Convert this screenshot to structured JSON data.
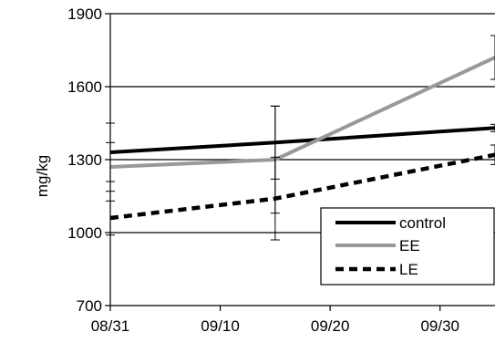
{
  "chart_data": {
    "type": "line",
    "title": "",
    "xlabel": "",
    "ylabel": "mg/kg",
    "ylim": [
      700,
      1900
    ],
    "yticks": [
      700,
      1000,
      1300,
      1600,
      1900
    ],
    "xlim": [
      "2010-08-31",
      "2010-10-05"
    ],
    "xticks": [
      "08/31",
      "09/10",
      "09/20",
      "09/30"
    ],
    "x": [
      "2010-08-31",
      "2010-09-15",
      "2010-10-05"
    ],
    "grid": "horizontal",
    "legend_position": "bottom-right",
    "series": [
      {
        "name": "control",
        "values": [
          1330,
          1370,
          1430
        ],
        "errors": [
          120,
          150,
          15
        ],
        "color": "#000000",
        "style": "solid"
      },
      {
        "name": "EE",
        "values": [
          1270,
          1300,
          1720
        ],
        "errors": [
          100,
          220,
          90
        ],
        "color": "#999999",
        "style": "solid"
      },
      {
        "name": "LE",
        "values": [
          1060,
          1140,
          1320
        ],
        "errors": [
          70,
          170,
          40
        ],
        "color": "#000000",
        "style": "dashed"
      }
    ]
  }
}
